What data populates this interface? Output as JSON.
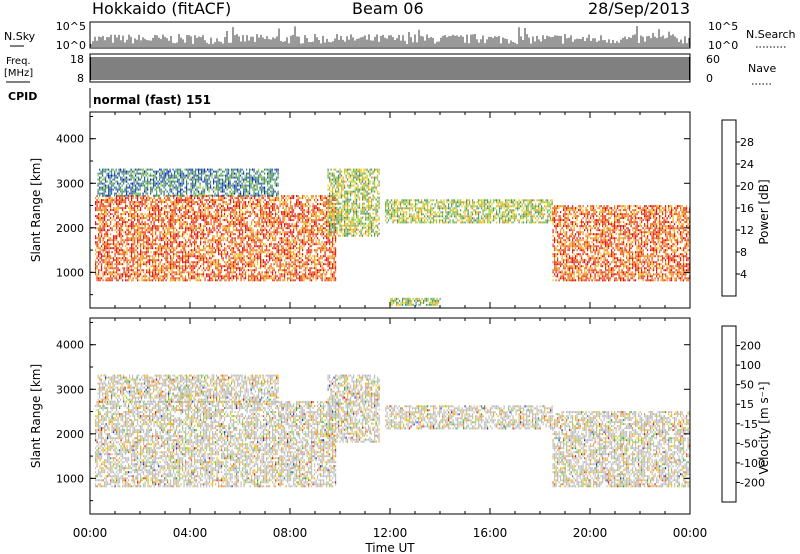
{
  "header": {
    "station": "Hokkaido (fitACF)",
    "beam": "Beam 06",
    "date": "28/Sep/2013"
  },
  "noise_panel": {
    "left_label": "N.Sky",
    "right_label": "N.Search",
    "left_ticks": [
      "10^5",
      "10^0"
    ],
    "right_ticks": [
      "10^5",
      "10^0"
    ]
  },
  "freq_panel": {
    "left_label_1": "Freq.",
    "left_label_2": "[MHz]",
    "left_ticks": [
      "18",
      "8"
    ],
    "right_label": "Nave",
    "right_ticks": [
      "60",
      "0"
    ]
  },
  "cpid": {
    "label": "CPID",
    "text": "normal (fast) 151"
  },
  "chart_data": [
    {
      "type": "heatmap",
      "name": "power",
      "ylabel": "Slant Range [km]",
      "yticks": [
        "1000",
        "2000",
        "3000",
        "4000"
      ],
      "ylim": [
        200,
        4600
      ],
      "xlim_hours": [
        0,
        24
      ],
      "colorbar": {
        "label": "Power [dB]",
        "ticks": [
          "4",
          "8",
          "12",
          "16",
          "20",
          "24",
          "28"
        ],
        "colors": [
          "#0a1fd8",
          "#2a5aa6",
          "#3f8a7a",
          "#52a058",
          "#9acd32",
          "#f2c316",
          "#f39a1a",
          "#ee5a10",
          "#e01010"
        ]
      },
      "regions": [
        {
          "t0": 0.2,
          "t1": 9.8,
          "r0": 800,
          "r1": 2700,
          "v": "high"
        },
        {
          "t0": 0.3,
          "t1": 7.5,
          "r0": 2700,
          "r1": 3300,
          "v": "low"
        },
        {
          "t0": 9.5,
          "t1": 11.6,
          "r0": 1800,
          "r1": 3300,
          "v": "mid"
        },
        {
          "t0": 11.8,
          "t1": 18.5,
          "r0": 2100,
          "r1": 2600,
          "v": "mid"
        },
        {
          "t0": 18.5,
          "t1": 24.0,
          "r0": 800,
          "r1": 2500,
          "v": "high"
        },
        {
          "t0": 12.0,
          "t1": 14.0,
          "r0": 250,
          "r1": 420,
          "v": "mid"
        }
      ]
    },
    {
      "type": "heatmap",
      "name": "velocity",
      "ylabel": "Slant Range [km]",
      "yticks": [
        "1000",
        "2000",
        "3000",
        "4000"
      ],
      "ylim": [
        200,
        4600
      ],
      "xlim_hours": [
        0,
        24
      ],
      "xticks": [
        "00:00",
        "04:00",
        "08:00",
        "12:00",
        "16:00",
        "20:00",
        "00:00"
      ],
      "xlabel": "Time UT",
      "colorbar": {
        "label": "Velocity [m s⁻¹]",
        "ticks": [
          "-200",
          "-100",
          "-50",
          "-15",
          "15",
          "50",
          "100",
          "200"
        ],
        "colors": [
          "#e01010",
          "#ee6010",
          "#f59a1a",
          "#f2c316",
          "#bebebe",
          "#7ed320",
          "#3f9a5a",
          "#2a5aa6",
          "#1a2fd8"
        ]
      },
      "regions": [
        {
          "t0": 0.2,
          "t1": 9.8,
          "r0": 800,
          "r1": 2700
        },
        {
          "t0": 0.3,
          "t1": 7.5,
          "r0": 2700,
          "r1": 3300
        },
        {
          "t0": 9.5,
          "t1": 11.6,
          "r0": 1800,
          "r1": 3300
        },
        {
          "t0": 11.8,
          "t1": 18.5,
          "r0": 2100,
          "r1": 2600
        },
        {
          "t0": 18.5,
          "t1": 24.0,
          "r0": 800,
          "r1": 2500
        }
      ]
    }
  ]
}
